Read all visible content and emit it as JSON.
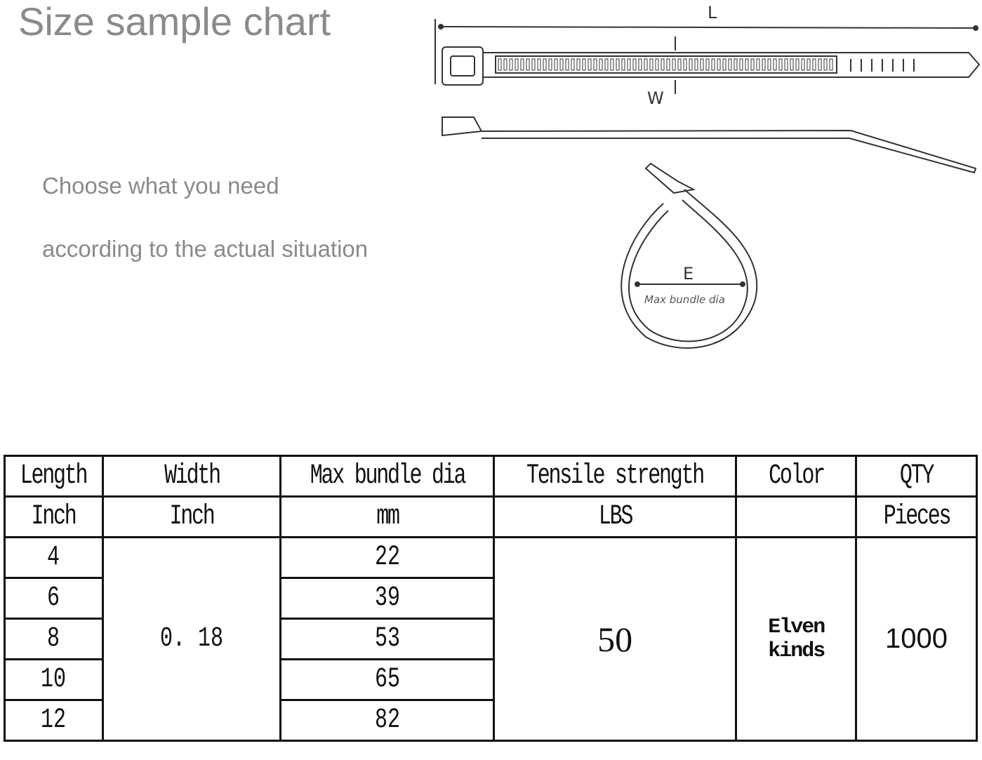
{
  "header": {
    "title": "Size sample chart",
    "line1": "Choose what you need",
    "line2": "according to the actual situation"
  },
  "diagram": {
    "length_label": "L",
    "width_label": "W",
    "bundle_label": "E",
    "bundle_caption": "Max bundle dia"
  },
  "table": {
    "headers": [
      "Length",
      "Width",
      "Max bundle dia",
      "Tensile strength",
      "Color",
      "QTY"
    ],
    "units": [
      "Inch",
      "Inch",
      "mm",
      "LBS",
      "",
      "Pieces"
    ],
    "lengths": [
      "4",
      "6",
      "8",
      "10",
      "12"
    ],
    "width": "0. 18",
    "bundle_dia": [
      "22",
      "39",
      "53",
      "65",
      "82"
    ],
    "tensile": "50",
    "color": "Elven kinds",
    "qty": "1000"
  }
}
